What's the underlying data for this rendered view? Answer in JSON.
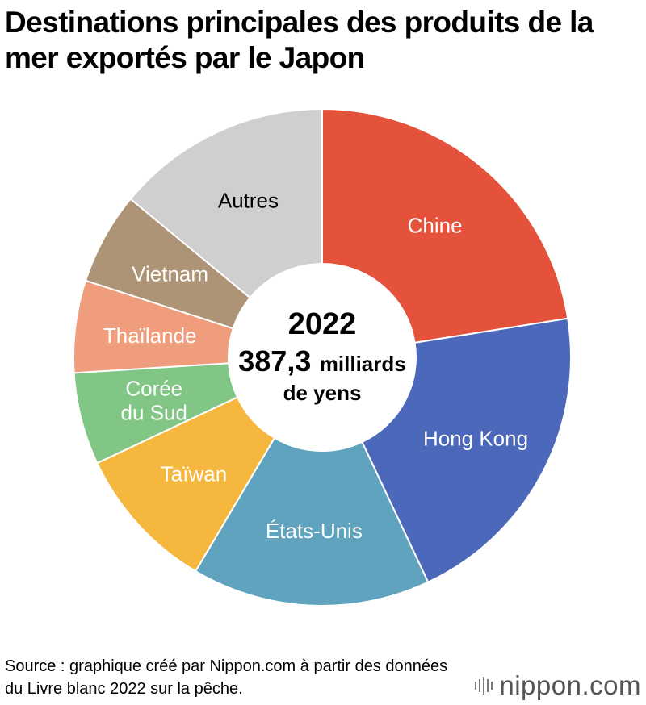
{
  "title": "Destinations principales des produits de la mer exportés par le Japon",
  "chart_data": {
    "type": "pie",
    "donut": true,
    "categories": [
      "Chine",
      "Hong Kong",
      "États-Unis",
      "Taïwan",
      "Corée du Sud",
      "Thaïlande",
      "Vietnam",
      "Autres"
    ],
    "values": [
      22.5,
      20.5,
      15.5,
      9.5,
      6.0,
      6.0,
      6.0,
      14.0
    ],
    "value_unit": "% (estimated share)",
    "colors": [
      "#e4523b",
      "#4b68bb",
      "#5fa3bf",
      "#f5b73e",
      "#82c686",
      "#f09d7d",
      "#ad9476",
      "#cfcfcf"
    ],
    "label_colors": [
      "#ffffff",
      "#ffffff",
      "#ffffff",
      "#ffffff",
      "#ffffff",
      "#ffffff",
      "#ffffff",
      "#000000"
    ],
    "center": {
      "year": "2022",
      "total_value": "387,3",
      "total_unit": "milliards",
      "total_unit_2": "de yens"
    }
  },
  "source": "Source : graphique créé par Nippon.com à partir des données du Livre blanc 2022 sur la pêche.",
  "logo": {
    "name": "nippon",
    "suffix": ".com"
  }
}
